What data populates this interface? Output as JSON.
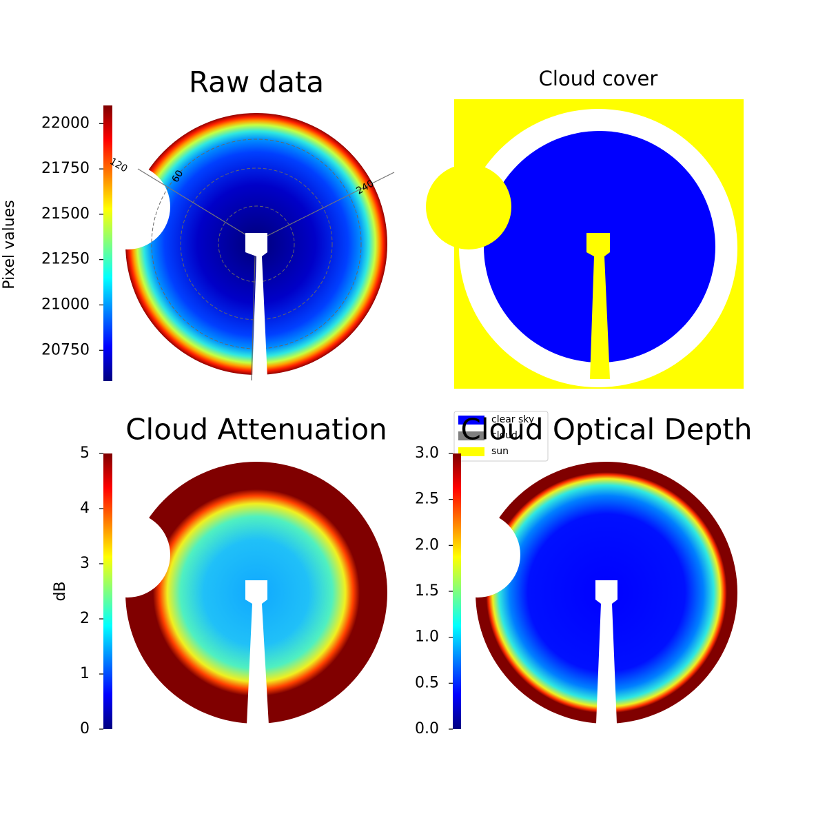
{
  "chart_data": [
    {
      "type": "image",
      "title": "Raw data",
      "colorbar_label": "Pixel values",
      "colormap": "jet",
      "ylim": [
        20580,
        22100
      ],
      "yticks": [
        20750,
        21000,
        21250,
        21500,
        21750,
        22000
      ],
      "annotations": [
        "120",
        "60",
        "240"
      ]
    },
    {
      "type": "image",
      "title": "Cloud cover",
      "series": [
        {
          "name": "clear sky",
          "color": "#0000ff"
        },
        {
          "name": "cloud",
          "color": "#808080"
        },
        {
          "name": "sun",
          "color": "#ffff00"
        }
      ]
    },
    {
      "type": "image",
      "title": "Cloud Attenuation",
      "colorbar_label": "dB",
      "colormap": "jet",
      "ylim": [
        0,
        5
      ],
      "yticks": [
        0,
        1,
        2,
        3,
        4,
        5
      ]
    },
    {
      "type": "image",
      "title": "Cloud Optical Depth",
      "colormap": "jet",
      "ylim": [
        0,
        3
      ],
      "yticks": [
        {
          "value": 0,
          "label": "0.0"
        },
        0.5,
        {
          "value": 1,
          "label": "1.0"
        },
        1.5,
        {
          "value": 2,
          "label": "2.0"
        },
        2.5,
        {
          "value": 3,
          "label": "3.0"
        }
      ]
    }
  ]
}
